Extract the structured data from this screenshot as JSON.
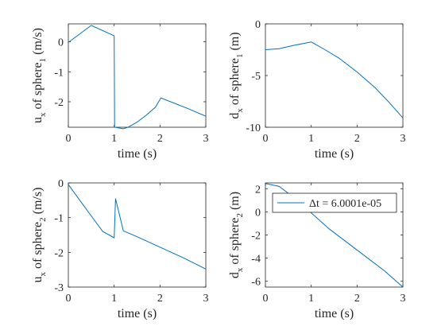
{
  "chart_data": [
    {
      "type": "line",
      "ylabel": {
        "pre": "u",
        "sub1": "x",
        "mid": " of sphere",
        "sub2": "1",
        "post": " (m/s)"
      },
      "xlabel": "time (s)",
      "xlim": [
        0,
        3
      ],
      "ylim": [
        -2.85,
        0.6
      ],
      "xticks": [
        0,
        1,
        2,
        3
      ],
      "xtick_labels": [
        "0",
        "1",
        "2",
        "3"
      ],
      "yticks": [
        0,
        -1,
        -2
      ],
      "ytick_labels": [
        "0",
        "-1",
        "-2"
      ],
      "color": "#0072BD",
      "series": [
        {
          "x": [
            0,
            0.5,
            1.0,
            1.01,
            1.2,
            1.3,
            1.5,
            1.7,
            1.9,
            2.02,
            2.3,
            2.6,
            3.0
          ],
          "y": [
            -0.02,
            0.55,
            0.2,
            -2.85,
            -2.9,
            -2.85,
            -2.68,
            -2.45,
            -2.18,
            -1.87,
            -2.04,
            -2.22,
            -2.48
          ]
        }
      ]
    },
    {
      "type": "line",
      "ylabel": {
        "pre": "d",
        "sub1": "x",
        "mid": " of sphere",
        "sub2": "1",
        "post": " (m)"
      },
      "xlabel": "time (s)",
      "xlim": [
        0,
        3
      ],
      "ylim": [
        -10,
        0
      ],
      "xticks": [
        0,
        1,
        2,
        3
      ],
      "xtick_labels": [
        "0",
        "1",
        "2",
        "3"
      ],
      "yticks": [
        0,
        -5,
        -10
      ],
      "ytick_labels": [
        "0",
        "-5",
        "-10"
      ],
      "color": "#0072BD",
      "series": [
        {
          "x": [
            0,
            0.3,
            0.6,
            1.0,
            1.3,
            1.6,
            2.0,
            2.4,
            2.7,
            3.0
          ],
          "y": [
            -2.5,
            -2.4,
            -2.1,
            -1.75,
            -2.5,
            -3.3,
            -4.65,
            -6.2,
            -7.6,
            -9.1
          ]
        }
      ]
    },
    {
      "type": "line",
      "ylabel": {
        "pre": "u",
        "sub1": "x",
        "mid": " of sphere",
        "sub2": "2",
        "post": " (m/s)"
      },
      "xlabel": "time (s)",
      "xlim": [
        0,
        3
      ],
      "ylim": [
        -3,
        0
      ],
      "xticks": [
        0,
        1,
        2,
        3
      ],
      "xtick_labels": [
        "0",
        "1",
        "2",
        "3"
      ],
      "yticks": [
        0,
        -1,
        -2,
        -3
      ],
      "ytick_labels": [
        "0",
        "-1",
        "-2",
        "-3"
      ],
      "color": "#0072BD",
      "series": [
        {
          "x": [
            0,
            0.25,
            0.5,
            0.75,
            1.0,
            1.03,
            1.2,
            1.5,
            2.0,
            2.5,
            3.0
          ],
          "y": [
            -0.05,
            -0.5,
            -0.95,
            -1.4,
            -1.58,
            -0.45,
            -1.38,
            -1.55,
            -1.85,
            -2.15,
            -2.48
          ]
        }
      ]
    },
    {
      "type": "line",
      "ylabel": {
        "pre": "d",
        "sub1": "x",
        "mid": " of sphere",
        "sub2": "2",
        "post": " (m)"
      },
      "xlabel": "time (s)",
      "xlim": [
        0,
        3
      ],
      "ylim": [
        -6.5,
        2.5
      ],
      "xticks": [
        0,
        1,
        2,
        3
      ],
      "xtick_labels": [
        "0",
        "1",
        "2",
        "3"
      ],
      "yticks": [
        2,
        0,
        -2,
        -4,
        -6
      ],
      "ytick_labels": [
        "2",
        "0",
        "-2",
        "-4",
        "-6"
      ],
      "color": "#0072BD",
      "legend": {
        "label": "Δt = 6.0001e-05",
        "location": "top-right"
      },
      "series": [
        {
          "name": "Δt = 6.0001e-05",
          "x": [
            0,
            0.3,
            0.6,
            1.0,
            1.4,
            1.8,
            2.2,
            2.6,
            3.0
          ],
          "y": [
            2.45,
            2.2,
            1.3,
            -0.1,
            -1.5,
            -2.7,
            -3.9,
            -5.1,
            -6.5
          ]
        }
      ]
    }
  ]
}
